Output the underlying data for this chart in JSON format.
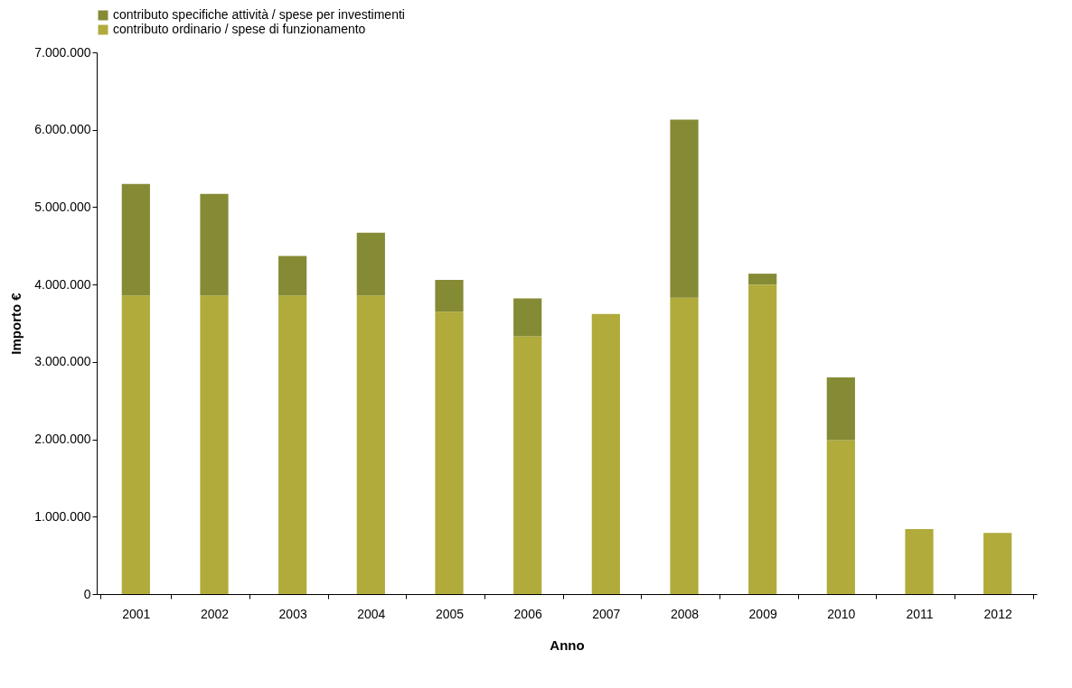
{
  "chart_data": {
    "type": "bar",
    "stacked": true,
    "xlabel": "Anno",
    "ylabel": "Importo €",
    "categories": [
      "2001",
      "2002",
      "2003",
      "2004",
      "2005",
      "2006",
      "2007",
      "2008",
      "2009",
      "2010",
      "2011",
      "2012"
    ],
    "series": [
      {
        "name": "contributo ordinario / spese di funzionamento",
        "color": "#b0ab3a",
        "values": [
          3860000,
          3860000,
          3860000,
          3860000,
          3650000,
          3330000,
          3620000,
          3830000,
          4000000,
          1990000,
          840000,
          790000
        ]
      },
      {
        "name": "contributo specifiche attività / spese per investimenti",
        "color": "#858a35",
        "values": [
          1440000,
          1310000,
          510000,
          810000,
          410000,
          490000,
          0,
          2300000,
          140000,
          810000,
          0,
          0
        ]
      }
    ],
    "ylim": [
      0,
      7000000
    ],
    "yticks": [
      0,
      {
        "value": 1000000,
        "label": "1.000.000"
      },
      {
        "value": 2000000,
        "label": "2.000.000"
      },
      {
        "value": 3000000,
        "label": "3.000.000"
      },
      {
        "value": 4000000,
        "label": "4.000.000"
      },
      {
        "value": 5000000,
        "label": "5.000.000"
      },
      {
        "value": 6000000,
        "label": "6.000.000"
      },
      {
        "value": 7000000,
        "label": "7.000.000"
      }
    ],
    "grid": false,
    "legend": "top"
  }
}
